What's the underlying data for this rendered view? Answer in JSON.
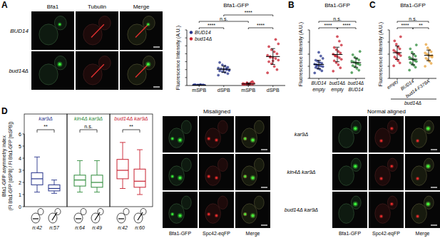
{
  "panel_letters": [
    "A",
    "B",
    "C",
    "D"
  ],
  "micrographs_A": {
    "columns": [
      "Bfa1",
      "Tubulin",
      "Merge"
    ],
    "rows": [
      "BUD14",
      "bud14Δ"
    ]
  },
  "micrographs_D": {
    "headers": [
      "Misaligned",
      "Normal aligned"
    ],
    "columns": [
      "Bfa1-GFP",
      "Spc42-eqFP",
      "Merge"
    ],
    "rows": [
      "kar9Δ",
      "kin4Δ kar9Δ",
      "bud14Δ kar9Δ"
    ]
  },
  "chart_data": [
    {
      "type": "dot",
      "title": "Bfa1-GFP",
      "ylabel": "Fluorescence Intensity (A.U.)",
      "categories": [
        "mSPB",
        "dSPB",
        "mSPB",
        "dSPB"
      ],
      "series": [
        {
          "name": "BUD14",
          "color": "#27348b",
          "values": [
            [
              0.05,
              0.1,
              0.15,
              0.1,
              0.2,
              0.05,
              0.1,
              0.12,
              0.08,
              0.15,
              0.1,
              0.2,
              0.05,
              0.1
            ],
            [
              2.6,
              3.0,
              3.3,
              3.5,
              3.7,
              3.8,
              4.0,
              4.1,
              4.2,
              4.4,
              4.6,
              4.9,
              5.2,
              5.8,
              3.9,
              4.3
            ]
          ],
          "mean": [
            0.1,
            4.1
          ],
          "sd": [
            0.05,
            0.8
          ]
        },
        {
          "name": "bud14Δ",
          "color": "#c8202f",
          "values": [
            [
              0.1,
              0.2,
              0.3,
              0.5,
              0.4,
              0.6,
              0.8,
              0.3,
              0.2,
              0.5,
              1.0,
              0.4,
              0.7,
              0.3
            ],
            [
              3.2,
              4.0,
              4.8,
              5.5,
              6.0,
              6.4,
              6.8,
              7.0,
              7.3,
              7.6,
              8.0,
              8.5,
              9.0,
              9.8,
              10.5,
              11.6,
              6.2,
              7.1
            ]
          ],
          "mean": [
            0.4,
            7.3
          ],
          "sd": [
            0.25,
            2.0
          ]
        }
      ],
      "ylim": [
        0,
        14
      ],
      "yticks": [
        0,
        2,
        4,
        6,
        8,
        10,
        12,
        14
      ],
      "tick_labels": false,
      "legend": "upper left",
      "comparisons": [
        {
          "label": "****",
          "pair": [
            0,
            1
          ]
        },
        {
          "label": "****",
          "pair": [
            2,
            3
          ]
        },
        {
          "label": "n.s.",
          "pair": [
            0,
            2
          ]
        },
        {
          "label": "****",
          "pair": [
            1,
            3
          ]
        }
      ]
    },
    {
      "type": "dot",
      "title": "Bfa1-GFP",
      "ylabel": "Fluorescence Intensity (A.U.)",
      "categories": [
        "BUD14",
        "bud14Δ",
        "bud14Δ"
      ],
      "subcategories": [
        "empty",
        "empty",
        "BUD14"
      ],
      "series": [
        {
          "color": "#27348b",
          "values": [
            [
              1.8,
              2.5,
              3.0,
              3.3,
              3.6,
              3.9,
              4.1,
              4.3,
              4.5,
              4.7,
              5.0,
              5.3,
              5.6,
              6.0,
              6.6,
              7.4,
              8.6,
              4.2
            ]
          ],
          "mean": [
            4.6
          ],
          "sd": [
            1.4
          ]
        },
        {
          "color": "#c8202f",
          "values": [
            [
              2.4,
              3.5,
              4.5,
              5.2,
              5.8,
              6.3,
              6.8,
              7.2,
              7.6,
              8.0,
              8.4,
              8.9,
              9.5,
              10.2,
              11.0,
              12.3,
              13.8,
              7.4
            ]
          ],
          "mean": [
            7.9
          ],
          "sd": [
            2.4
          ]
        },
        {
          "color": "#2e8b3a",
          "values": [
            [
              1.9,
              2.7,
              3.3,
              3.8,
              4.2,
              4.5,
              4.8,
              5.1,
              5.4,
              5.7,
              6.1,
              6.5,
              7.0,
              7.8,
              8.9,
              5.0
            ]
          ],
          "mean": [
            5.2
          ],
          "sd": [
            1.5
          ]
        }
      ],
      "ylim": [
        0,
        16
      ],
      "yticks": [
        0,
        4,
        8,
        12,
        16
      ],
      "tick_labels": false,
      "comparisons": [
        {
          "label": "****",
          "pair": [
            0,
            1
          ]
        },
        {
          "label": "****",
          "pair": [
            1,
            2
          ]
        },
        {
          "label": "n.s.",
          "pair": [
            0,
            2
          ]
        }
      ]
    },
    {
      "type": "dot",
      "title": "Bfa1-GFP",
      "ylabel": "Fluorescence Intensity (A.U.)",
      "categories": [
        "empty",
        "BUD14",
        "bud14-F379A"
      ],
      "group_label": "bud14Δ",
      "series": [
        {
          "color": "#c8202f",
          "values": [
            [
              5.2,
              6.4,
              7.3,
              8.1,
              8.8,
              9.4,
              10.0,
              10.5,
              11.0,
              11.6,
              12.2,
              13.0,
              14.1,
              15.5,
              17.2,
              10.3
            ]
          ],
          "mean": [
            10.6
          ],
          "sd": [
            2.8
          ]
        },
        {
          "color": "#2e8b3a",
          "values": [
            [
              3.4,
              4.6,
              5.4,
              6.0,
              6.5,
              7.0,
              7.4,
              7.8,
              8.2,
              8.7,
              9.2,
              9.9,
              10.8,
              12.2,
              13.8,
              7.6
            ]
          ],
          "mean": [
            7.9
          ],
          "sd": [
            2.3
          ]
        },
        {
          "color": "#e8a33d",
          "values": [
            [
              5.0,
              6.2,
              7.0,
              7.7,
              8.3,
              8.8,
              9.2,
              9.6,
              10.0,
              10.5,
              11.0,
              11.7,
              12.6,
              14.0,
              9.4
            ]
          ],
          "mean": [
            9.5
          ],
          "sd": [
            2.2
          ]
        }
      ],
      "ylim": [
        0,
        20
      ],
      "yticks": [
        0,
        5,
        10,
        15,
        20
      ],
      "tick_labels": false,
      "comparisons": [
        {
          "label": "****",
          "pair": [
            0,
            1
          ]
        },
        {
          "label": "**",
          "pair": [
            1,
            2
          ]
        },
        {
          "label": "n.s.",
          "pair": [
            0,
            2
          ]
        }
      ]
    },
    {
      "type": "box",
      "ylabel": "Bfa1-GFP asymmetry index",
      "ylabel2": "(FI Bfa1-GFP [dSPB] / FI Bfa1-GFP [mSPB])",
      "ylim": [
        0,
        6
      ],
      "yticks": [
        0,
        1,
        2,
        3,
        4,
        5,
        6
      ],
      "groups": [
        {
          "name": "kar9Δ",
          "color": "#27348b",
          "comparison": "**",
          "n": [
            "n:42",
            "n:57"
          ],
          "boxes": [
            {
              "min": 1.2,
              "q1": 1.8,
              "median": 2.3,
              "q3": 2.8,
              "max": 4.1
            },
            {
              "min": 1.1,
              "q1": 1.3,
              "median": 1.5,
              "q3": 1.8,
              "max": 2.2
            }
          ]
        },
        {
          "name": "kin4Δ kar9Δ",
          "color": "#2e8b3a",
          "comparison": "n.s.",
          "n": [
            "n:64",
            "n:49"
          ],
          "boxes": [
            {
              "min": 1.2,
              "q1": 1.7,
              "median": 2.2,
              "q3": 2.6,
              "max": 3.8
            },
            {
              "min": 1.2,
              "q1": 1.6,
              "median": 2.0,
              "q3": 2.6,
              "max": 3.8
            }
          ]
        },
        {
          "name": "bud14Δ kar9Δ",
          "color": "#c8202f",
          "comparison": "**",
          "n": [
            "n:42",
            "n:60"
          ],
          "boxes": [
            {
              "min": 1.5,
              "q1": 2.3,
              "median": 3.0,
              "q3": 3.9,
              "max": 5.3
            },
            {
              "min": 1.0,
              "q1": 1.6,
              "median": 2.1,
              "q3": 3.1,
              "max": 4.7
            }
          ]
        }
      ]
    }
  ]
}
